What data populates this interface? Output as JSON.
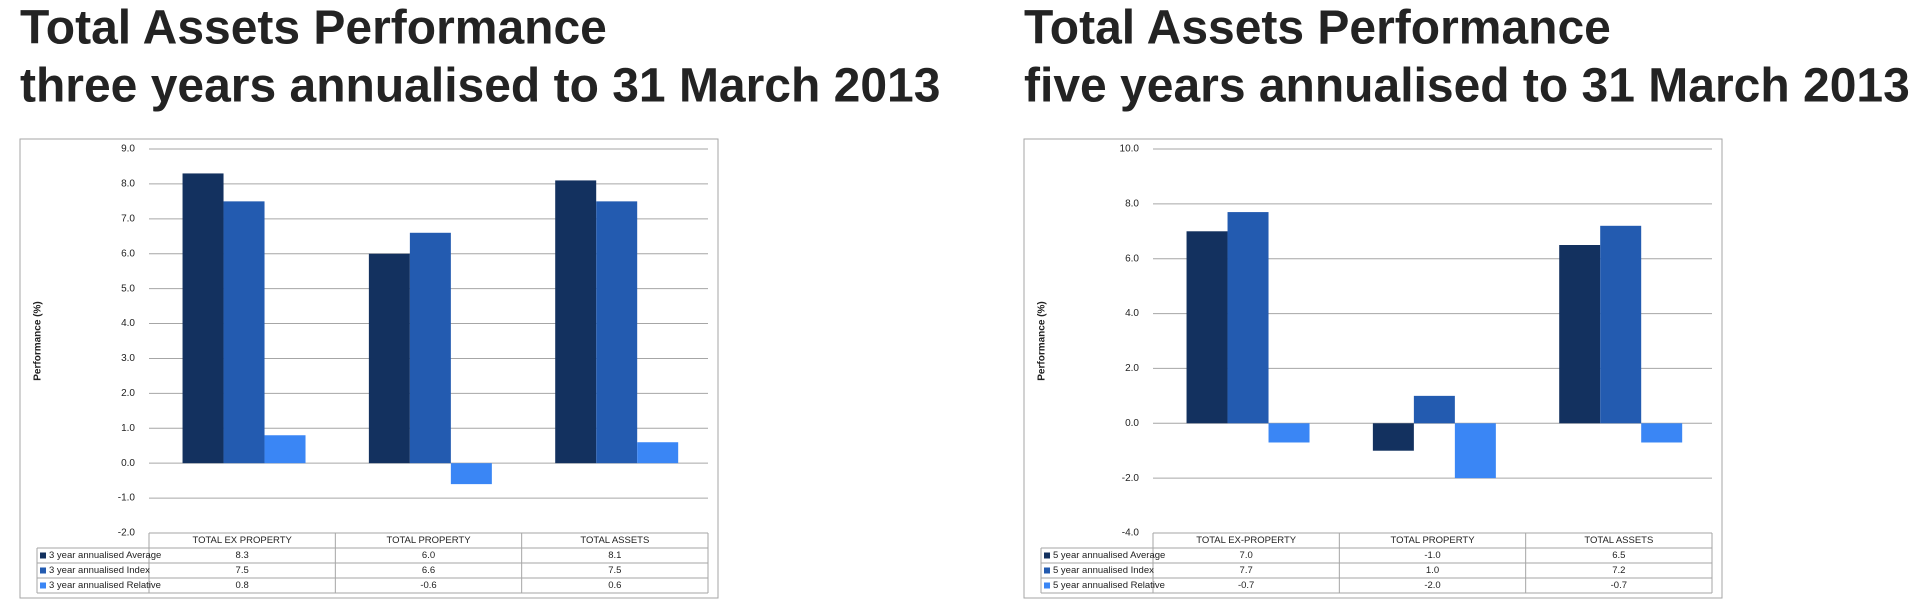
{
  "chart_data": [
    {
      "type": "bar",
      "title": "Total Assets Performance",
      "subtitle": "three years annualised to 31 March 2013",
      "ylabel": "Performance (%)",
      "categories": [
        "TOTAL EX PROPERTY",
        "TOTAL PROPERTY",
        "TOTAL ASSETS"
      ],
      "series": [
        {
          "name": "3 year annualised Average",
          "color": "#13315f",
          "values": [
            8.3,
            6.0,
            8.1
          ],
          "value_labels": [
            "8.3",
            "6.0",
            "8.1"
          ]
        },
        {
          "name": "3 year annualised Index",
          "color": "#235bb0",
          "values": [
            7.5,
            6.6,
            7.5
          ],
          "value_labels": [
            "7.5",
            "6.6",
            "7.5"
          ]
        },
        {
          "name": "3 year annualised Relative",
          "color": "#3a86f5",
          "values": [
            0.8,
            -0.6,
            0.6
          ],
          "value_labels": [
            "0.8",
            "-0.6",
            "0.6"
          ]
        }
      ],
      "ylim": [
        -2,
        9
      ],
      "yticks": [
        {
          "value": -2,
          "label": "-2.0"
        },
        {
          "value": -1,
          "label": "-1.0"
        },
        {
          "value": 0,
          "label": "0.0"
        },
        {
          "value": 1,
          "label": "1.0"
        },
        {
          "value": 2,
          "label": "2.0"
        },
        {
          "value": 3,
          "label": "3.0"
        },
        {
          "value": 4,
          "label": "4.0"
        },
        {
          "value": 5,
          "label": "5.0"
        },
        {
          "value": 6,
          "label": "6.0"
        },
        {
          "value": 7,
          "label": "7.0"
        },
        {
          "value": 8,
          "label": "8.0"
        },
        {
          "value": 9,
          "label": "9.0"
        }
      ],
      "grid": true
    },
    {
      "type": "bar",
      "title": "Total Assets Performance",
      "subtitle": "five years annualised to 31 March 2013",
      "ylabel": "Performance (%)",
      "categories": [
        "TOTAL EX-PROPERTY",
        "TOTAL PROPERTY",
        "TOTAL ASSETS"
      ],
      "series": [
        {
          "name": "5 year annualised Average",
          "color": "#13315f",
          "values": [
            7.0,
            -1.0,
            6.5
          ],
          "value_labels": [
            "7.0",
            "-1.0",
            "6.5"
          ]
        },
        {
          "name": "5 year annualised Index",
          "color": "#235bb0",
          "values": [
            7.7,
            1.0,
            7.2
          ],
          "value_labels": [
            "7.7",
            "1.0",
            "7.2"
          ]
        },
        {
          "name": "5 year annualised Relative",
          "color": "#3a86f5",
          "values": [
            -0.7,
            -2.0,
            -0.7
          ],
          "value_labels": [
            "-0.7",
            "-2.0",
            "-0.7"
          ]
        }
      ],
      "ylim": [
        -4,
        10
      ],
      "yticks": [
        {
          "value": -4,
          "label": "-4.0"
        },
        {
          "value": -2,
          "label": "-2.0"
        },
        {
          "value": 0,
          "label": "0.0"
        },
        {
          "value": 2,
          "label": "2.0"
        },
        {
          "value": 4,
          "label": "4.0"
        },
        {
          "value": 6,
          "label": "6.0"
        },
        {
          "value": 8,
          "label": "8.0"
        },
        {
          "value": 10,
          "label": "10.0"
        }
      ],
      "grid": true
    }
  ]
}
